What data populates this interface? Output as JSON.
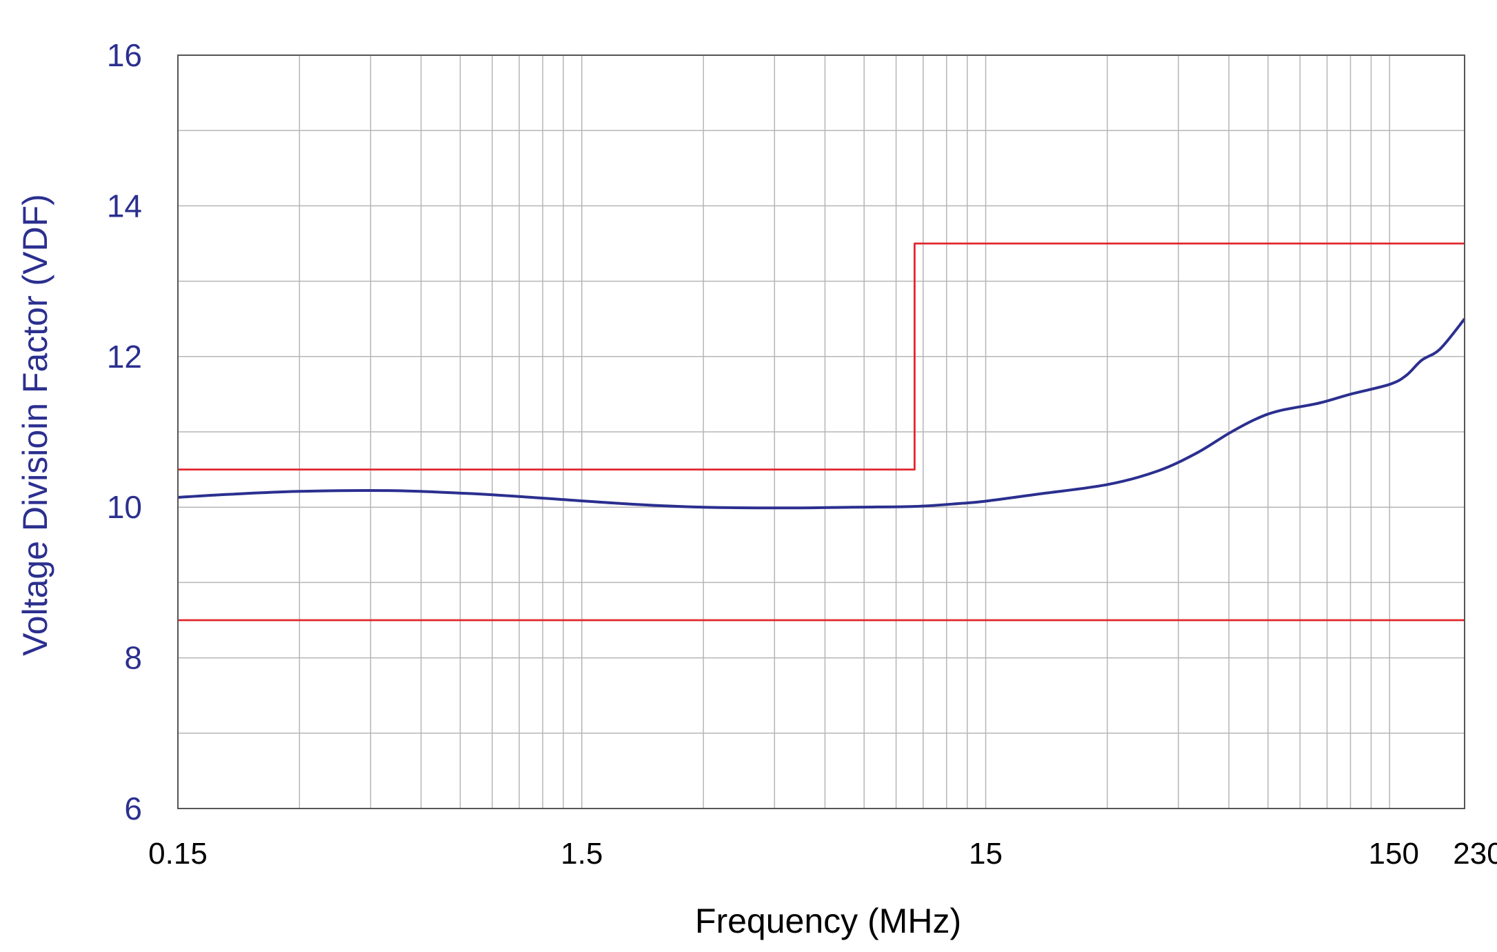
{
  "chart_data": {
    "type": "line",
    "title": "",
    "xlabel": "Frequency (MHz)",
    "ylabel": "Voltage Divisioin Factor (VDF)",
    "xscale": "log",
    "xlim": [
      0.15,
      230
    ],
    "ylim": [
      6,
      16
    ],
    "xticks": [
      0.15,
      1.5,
      15,
      150,
      230
    ],
    "xtick_labels": [
      "0.15",
      "1.5",
      "15",
      "150",
      "230"
    ],
    "yticks": [
      6,
      8,
      10,
      12,
      14,
      16
    ],
    "ytick_labels": [
      "6",
      "8",
      "10",
      "12",
      "14",
      "16"
    ],
    "grid": true,
    "legend": "none",
    "colors": {
      "measured": "#2b2f8f",
      "limit": "#e0262b",
      "axis_text": "#2b2f8f",
      "grid": "#b5b5b5"
    },
    "series": [
      {
        "role": "measured",
        "x": [
          0.15,
          0.2,
          0.3,
          0.5,
          0.8,
          1.2,
          2,
          3,
          5,
          7,
          10,
          13,
          15,
          20,
          30,
          40,
          50,
          60,
          70,
          80,
          100,
          120,
          150,
          165,
          180,
          200,
          230
        ],
        "y": [
          10.13,
          10.17,
          10.21,
          10.22,
          10.18,
          10.12,
          10.04,
          10.0,
          9.99,
          10.0,
          10.01,
          10.05,
          10.08,
          10.17,
          10.3,
          10.48,
          10.72,
          10.98,
          11.17,
          11.28,
          11.38,
          11.5,
          11.63,
          11.75,
          11.95,
          12.1,
          12.5
        ]
      },
      {
        "role": "upper-limit",
        "x": [
          0.15,
          10,
          10,
          230
        ],
        "y": [
          10.5,
          10.5,
          13.5,
          13.5
        ]
      },
      {
        "role": "lower-limit",
        "x": [
          0.15,
          230
        ],
        "y": [
          8.5,
          8.5
        ]
      }
    ]
  }
}
